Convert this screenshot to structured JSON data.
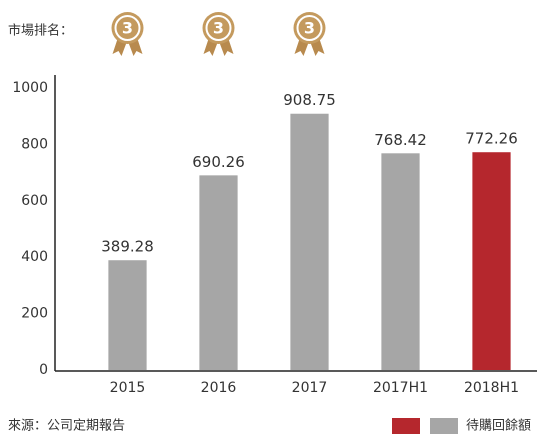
{
  "chart_data": {
    "type": "bar",
    "rank_label": "市場排名：",
    "ranks": [
      3,
      3,
      3
    ],
    "categories": [
      "2015",
      "2016",
      "2017",
      "2017H1",
      "2018H1"
    ],
    "series": [
      {
        "name": "待購回餘額",
        "values": [
          389.28,
          690.26,
          908.75,
          768.42,
          772.26
        ],
        "colors": [
          "#a6a6a6",
          "#a6a6a6",
          "#a6a6a6",
          "#a6a6a6",
          "#b5272d"
        ]
      }
    ],
    "legend_colors": [
      "#b5272d",
      "#a6a6a6"
    ],
    "ylim": [
      0,
      1000
    ],
    "yticks": [
      0,
      200,
      400,
      600,
      800,
      1000
    ],
    "source": "來源：公司定期報告"
  }
}
